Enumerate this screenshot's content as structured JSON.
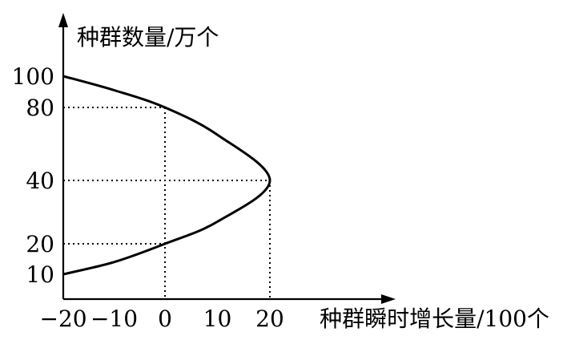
{
  "chart_data": {
    "type": "line",
    "ylabel": "种群数量/万个",
    "xlabel": "种群瞬时增长量/100个",
    "x_ticks": [
      "−20",
      "−10",
      "0",
      "10",
      "20"
    ],
    "x_tick_values": [
      -20,
      -10,
      0,
      10,
      20
    ],
    "y_ticks": [
      "10",
      "20",
      "40",
      "80",
      "100"
    ],
    "y_tick_values": [
      10,
      20,
      40,
      80,
      100
    ],
    "series": [
      {
        "points": [
          {
            "x": -20,
            "y": 100
          },
          {
            "x": -10,
            "y": 91
          },
          {
            "x": 0,
            "y": 80
          },
          {
            "x": 10,
            "y": 65
          },
          {
            "x": 20,
            "y": 40
          },
          {
            "x": 10,
            "y": 27
          },
          {
            "x": 0,
            "y": 20
          },
          {
            "x": -10,
            "y": 14
          },
          {
            "x": -20,
            "y": 10
          }
        ]
      }
    ],
    "reference_points": [
      {
        "x": 0,
        "y": 80
      },
      {
        "x": 20,
        "y": 40
      },
      {
        "x": 0,
        "y": 20
      }
    ],
    "grid": false,
    "axis_color": "#000000",
    "curve_color": "#000000"
  }
}
